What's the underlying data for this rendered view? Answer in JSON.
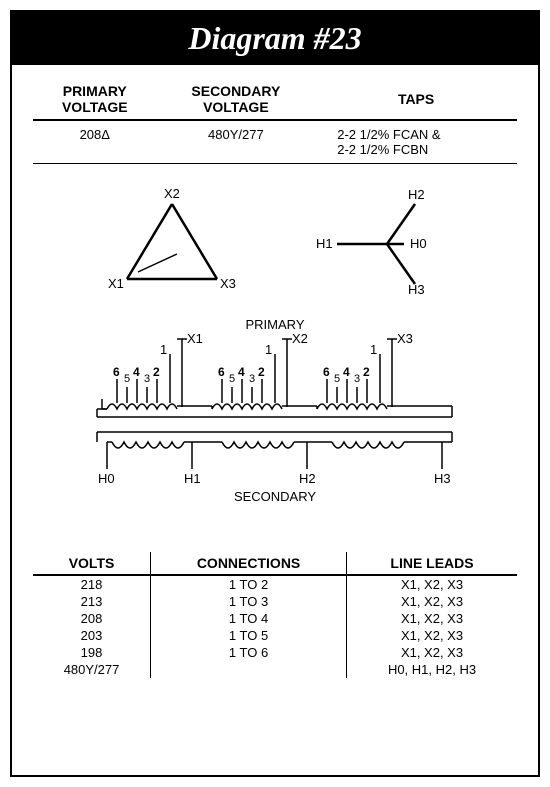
{
  "title": "Diagram #23",
  "header": {
    "columns": [
      "PRIMARY VOLTAGE",
      "SECONDARY VOLTAGE",
      "TAPS"
    ],
    "row": {
      "primary": "208Δ",
      "secondary": "480Y/277",
      "taps": "2-2 1/2% FCAN & 2-2 1/2% FCBN"
    }
  },
  "delta": {
    "labels": {
      "top": "X2",
      "left": "X1",
      "right": "X3"
    },
    "stroke": "#000000",
    "strokeWidth": 2
  },
  "wye": {
    "labels": {
      "left": "H1",
      "top": "H2",
      "right": "H0",
      "bottom": "H3"
    },
    "stroke": "#000000",
    "strokeWidth": 2
  },
  "winding": {
    "primaryLabel": "PRIMARY",
    "secondaryLabel": "SECONDARY",
    "primaryTerminals": [
      "X1",
      "X2",
      "X3"
    ],
    "secondaryTerminals": [
      "H0",
      "H1",
      "H2",
      "H3"
    ],
    "tapSequenceTop": [
      "6",
      "4",
      "2"
    ],
    "tapSequenceBottom": [
      "5",
      "3"
    ],
    "tapLeft": "1"
  },
  "connections": {
    "columns": [
      "VOLTS",
      "CONNECTIONS",
      "LINE LEADS"
    ],
    "rows": [
      {
        "volts": "218",
        "conn": "1 TO 2",
        "leads": "X1, X2, X3"
      },
      {
        "volts": "213",
        "conn": "1 TO 3",
        "leads": "X1, X2, X3"
      },
      {
        "volts": "208",
        "conn": "1 TO 4",
        "leads": "X1, X2, X3"
      },
      {
        "volts": "203",
        "conn": "1 TO 5",
        "leads": "X1, X2, X3"
      },
      {
        "volts": "198",
        "conn": "1 TO 6",
        "leads": "X1, X2, X3"
      },
      {
        "volts": "480Y/277",
        "conn": "",
        "leads": "H0, H1, H2, H3"
      }
    ]
  },
  "colors": {
    "fg": "#000000",
    "bg": "#ffffff"
  }
}
